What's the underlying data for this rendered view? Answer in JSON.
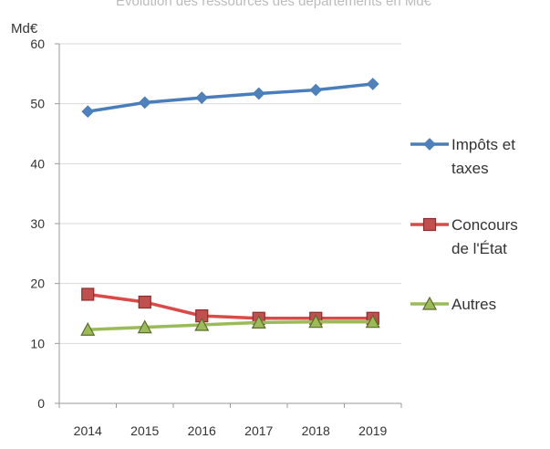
{
  "cut_title": "Évolution des ressources des départements en Md€",
  "chart_data": {
    "type": "line",
    "title": "Évolution des ressources des départements en Md€",
    "ylabel": "Md€",
    "xlabel": "",
    "ylim": [
      0,
      60
    ],
    "yticks": [
      0,
      10,
      20,
      30,
      40,
      50,
      60
    ],
    "categories": [
      "2014",
      "2015",
      "2016",
      "2017",
      "2018",
      "2019"
    ],
    "grid": true,
    "legend_position": "right",
    "series": [
      {
        "name": "Impôts et taxes",
        "legend_lines": [
          "Impôts et",
          "taxes"
        ],
        "color": "#4a7ebb",
        "fill": "#4f81bd",
        "marker": "diamond",
        "values": [
          48.7,
          50.2,
          51.0,
          51.7,
          52.3,
          53.3
        ]
      },
      {
        "name": "Concours de l'État",
        "legend_lines": [
          "Concours",
          "de l'État"
        ],
        "color": "#d94b48",
        "fill": "#c0504d",
        "marker": "square",
        "values": [
          18.2,
          16.9,
          14.6,
          14.2,
          14.2,
          14.2
        ]
      },
      {
        "name": "Autres",
        "legend_lines": [
          "Autres"
        ],
        "color": "#9bbb59",
        "fill": "#9bbb59",
        "marker": "triangle",
        "values": [
          12.3,
          12.7,
          13.1,
          13.5,
          13.6,
          13.6
        ]
      }
    ]
  }
}
